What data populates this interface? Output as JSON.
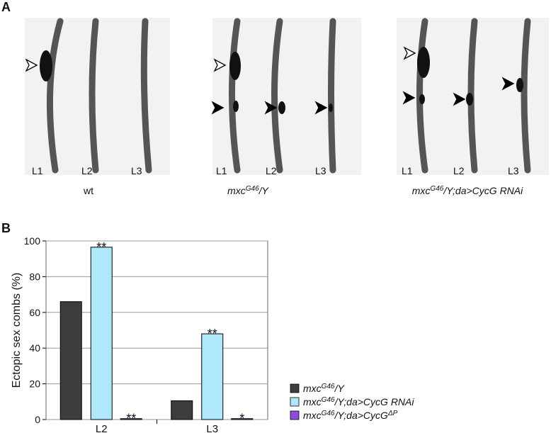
{
  "panel_a": {
    "label": "A",
    "groups": [
      {
        "caption": [
          "wt"
        ],
        "legs": [
          "L1",
          "L2",
          "L3"
        ]
      },
      {
        "caption": [
          "mxc",
          "G46",
          "/Y"
        ],
        "legs": [
          "L1",
          "L2",
          "L3"
        ]
      },
      {
        "caption": [
          "mxc",
          "G46",
          "/Y;da>CycG RNAi"
        ],
        "legs": [
          "L1",
          "L2",
          "L3"
        ]
      }
    ]
  },
  "panel_b_label": "B",
  "chart_data": {
    "type": "bar",
    "ylabel": "Ectopic sex combs (%)",
    "categories": [
      "L2",
      "L3"
    ],
    "series": [
      {
        "name": [
          "mxc",
          "G46",
          "/Y"
        ],
        "color": "#3d3d3d",
        "values": [
          66,
          10.5
        ]
      },
      {
        "name": [
          "mxc",
          "G46",
          "/Y;da>CycG RNAi"
        ],
        "color": "#aee8fa",
        "values": [
          96.5,
          48
        ],
        "significance": [
          "**",
          "**"
        ]
      },
      {
        "name": [
          "mxc",
          "G46",
          "/Y;da>CycG",
          "ΔP"
        ],
        "color": "#8a4fd8",
        "values": [
          0.5,
          0.5
        ],
        "significance": [
          "**",
          "*"
        ]
      }
    ],
    "ylim": [
      0,
      100
    ],
    "yticks": [
      0,
      20,
      40,
      60,
      80,
      100
    ],
    "grid": true
  }
}
